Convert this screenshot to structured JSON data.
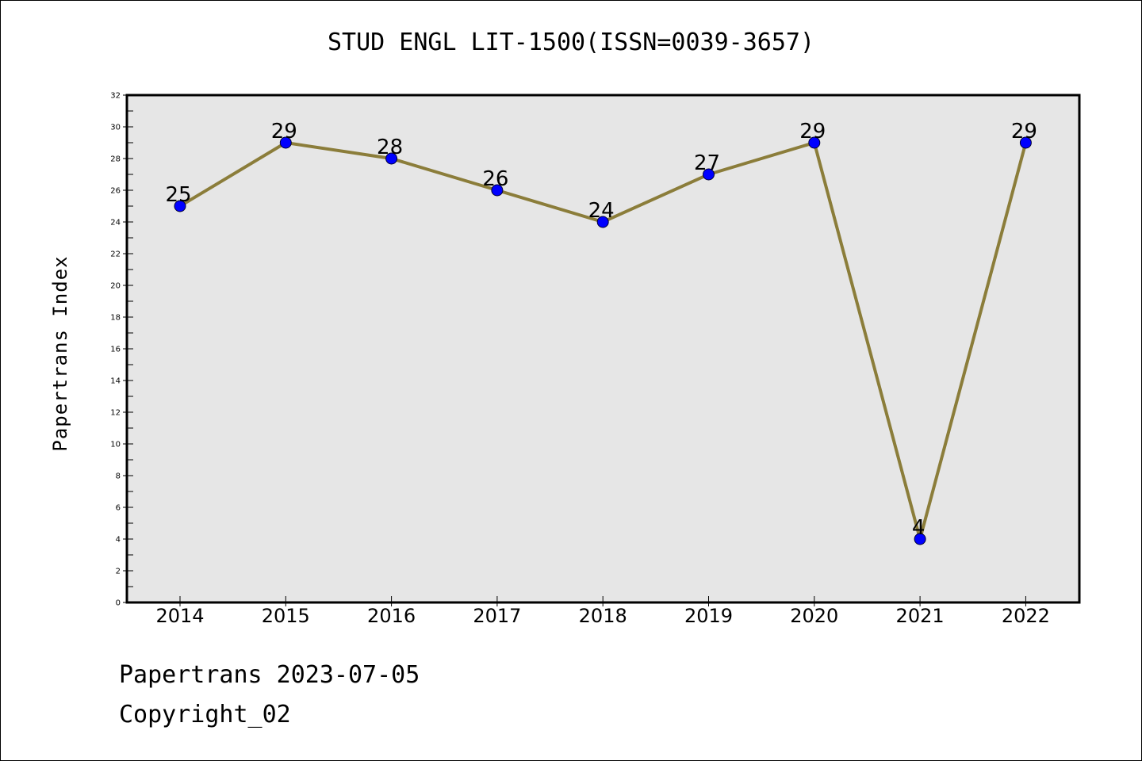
{
  "chart_data": {
    "type": "line",
    "title": "STUD ENGL LIT-1500(ISSN=0039-3657)",
    "xlabel": "",
    "ylabel": "Papertrans Index",
    "categories": [
      "2014",
      "2015",
      "2016",
      "2017",
      "2018",
      "2019",
      "2020",
      "2021",
      "2022"
    ],
    "series": [
      {
        "values": [
          25,
          29,
          28,
          26,
          24,
          27,
          29,
          4,
          29
        ],
        "line_color": "#8b7d3a",
        "marker_color": "#0000ff"
      }
    ],
    "ylim": [
      0,
      32
    ],
    "yticks": [
      "0",
      "2",
      "4",
      "6",
      "8",
      "10",
      "12",
      "14",
      "16",
      "18",
      "20",
      "22",
      "24",
      "26",
      "28",
      "30",
      "32"
    ],
    "grid": false,
    "plot_background": "#e6e6e6",
    "data_labels": true
  },
  "footer": {
    "line1": "Papertrans 2023-07-05",
    "line2": "Copyright_02"
  }
}
